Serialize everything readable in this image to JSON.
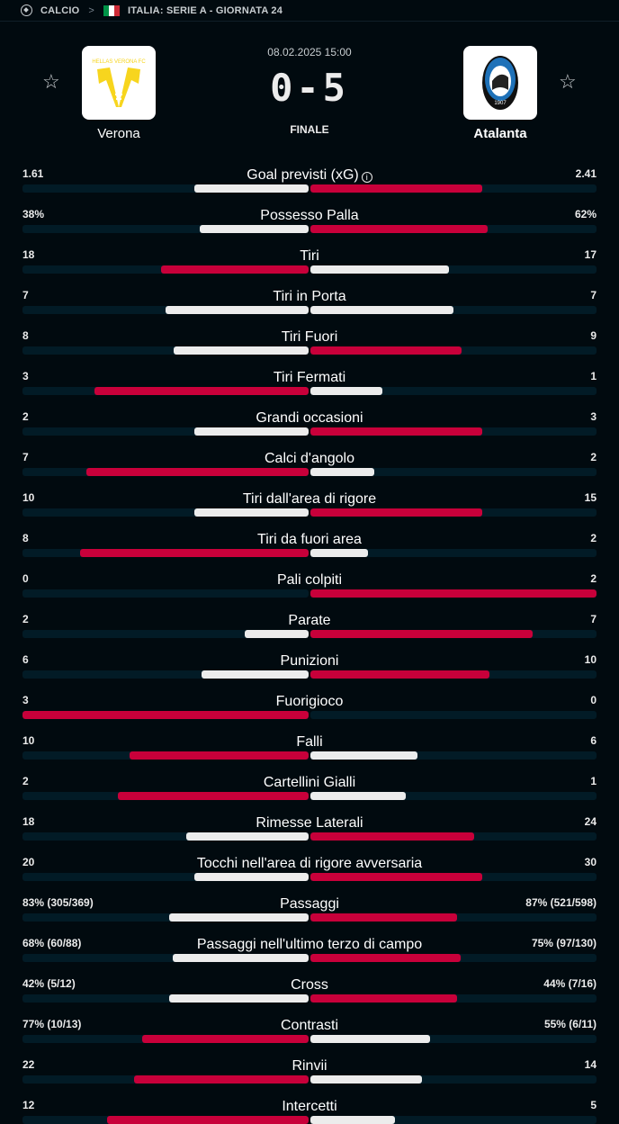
{
  "breadcrumb": {
    "sport": "CALCIO",
    "separator": ">",
    "competition": "ITALIA: SERIE A - GIORNATA 24",
    "flag_colors": [
      "#009246",
      "#ffffff",
      "#ce2b37"
    ]
  },
  "match": {
    "datetime": "08.02.2025 15:00",
    "score": "0-5",
    "status": "FINALE",
    "home": {
      "name": "Verona",
      "logo_text": "HELLAS VERONA FC",
      "logo_color": "#f7d51e"
    },
    "away": {
      "name": "Atalanta",
      "logo_text": "ATALANTA 1907",
      "logo_color": "#1e71b8"
    }
  },
  "colors": {
    "winner": "#c8003a",
    "loser": "#ececec",
    "track": "#021b26",
    "background": "#010a0f"
  },
  "stats": [
    {
      "name": "Goal previsti (xG)",
      "home": "1.61",
      "away": "2.41",
      "hv": 1.61,
      "av": 2.41,
      "info": true
    },
    {
      "name": "Possesso Palla",
      "home": "38%",
      "away": "62%",
      "hv": 38,
      "av": 62
    },
    {
      "name": "Tiri",
      "home": "18",
      "away": "17",
      "hv": 18,
      "av": 17
    },
    {
      "name": "Tiri in Porta",
      "home": "7",
      "away": "7",
      "hv": 7,
      "av": 7
    },
    {
      "name": "Tiri Fuori",
      "home": "8",
      "away": "9",
      "hv": 8,
      "av": 9
    },
    {
      "name": "Tiri Fermati",
      "home": "3",
      "away": "1",
      "hv": 3,
      "av": 1
    },
    {
      "name": "Grandi occasioni",
      "home": "2",
      "away": "3",
      "hv": 2,
      "av": 3
    },
    {
      "name": "Calci d'angolo",
      "home": "7",
      "away": "2",
      "hv": 7,
      "av": 2
    },
    {
      "name": "Tiri dall'area di rigore",
      "home": "10",
      "away": "15",
      "hv": 10,
      "av": 15
    },
    {
      "name": "Tiri da fuori area",
      "home": "8",
      "away": "2",
      "hv": 8,
      "av": 2
    },
    {
      "name": "Pali colpiti",
      "home": "0",
      "away": "2",
      "hv": 0,
      "av": 2
    },
    {
      "name": "Parate",
      "home": "2",
      "away": "7",
      "hv": 2,
      "av": 7
    },
    {
      "name": "Punizioni",
      "home": "6",
      "away": "10",
      "hv": 6,
      "av": 10
    },
    {
      "name": "Fuorigioco",
      "home": "3",
      "away": "0",
      "hv": 3,
      "av": 0
    },
    {
      "name": "Falli",
      "home": "10",
      "away": "6",
      "hv": 10,
      "av": 6
    },
    {
      "name": "Cartellini Gialli",
      "home": "2",
      "away": "1",
      "hv": 2,
      "av": 1
    },
    {
      "name": "Rimesse Laterali",
      "home": "18",
      "away": "24",
      "hv": 18,
      "av": 24
    },
    {
      "name": "Tocchi nell'area di rigore avversaria",
      "home": "20",
      "away": "30",
      "hv": 20,
      "av": 30
    },
    {
      "name": "Passaggi",
      "home": "83% (305/369)",
      "away": "87% (521/598)",
      "hv": 83,
      "av": 87
    },
    {
      "name": "Passaggi nell'ultimo terzo di campo",
      "home": "68% (60/88)",
      "away": "75% (97/130)",
      "hv": 68,
      "av": 75
    },
    {
      "name": "Cross",
      "home": "42% (5/12)",
      "away": "44% (7/16)",
      "hv": 42,
      "av": 44
    },
    {
      "name": "Contrasti",
      "home": "77% (10/13)",
      "away": "55% (6/11)",
      "hv": 77,
      "av": 55
    },
    {
      "name": "Rinvii",
      "home": "22",
      "away": "14",
      "hv": 22,
      "av": 14
    },
    {
      "name": "Intercetti",
      "home": "12",
      "away": "5",
      "hv": 12,
      "av": 5
    }
  ]
}
